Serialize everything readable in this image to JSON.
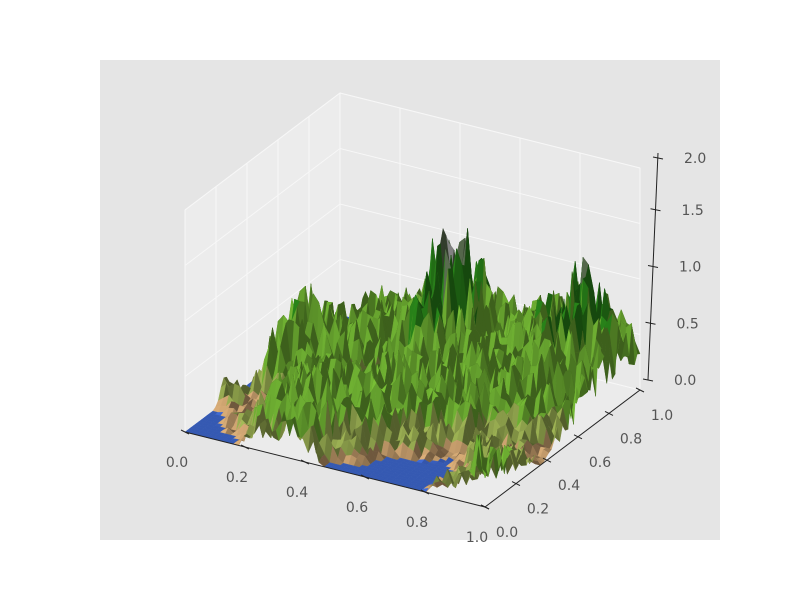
{
  "chart_data": {
    "type": "surface",
    "title": "",
    "xlabel": "",
    "ylabel": "",
    "zlabel": "",
    "xlim": [
      0,
      1
    ],
    "ylim": [
      0,
      1
    ],
    "zlim": [
      0,
      2
    ],
    "x_ticks": [
      "0.0",
      "0.2",
      "0.4",
      "0.6",
      "0.8",
      "1.0"
    ],
    "y_ticks": [
      "0.0",
      "0.2",
      "0.4",
      "0.6",
      "0.8",
      "1.0"
    ],
    "z_ticks": [
      "0.0",
      "0.5",
      "1.0",
      "1.5",
      "2.0"
    ],
    "grid": true,
    "colormap": "terrain",
    "colors": {
      "water": "#3c64c8",
      "sand": "#c9a06e",
      "low_green": "#7cb83a",
      "green": "#2f8a1e",
      "dark_green": "#1a5e10",
      "snow": "#f2f2f2",
      "background": "#e5e5e5"
    },
    "z_estimate_grid": {
      "x": [
        0,
        0.125,
        0.25,
        0.375,
        0.5,
        0.625,
        0.75,
        0.875,
        1
      ],
      "y": [
        0,
        0.125,
        0.25,
        0.375,
        0.5,
        0.625,
        0.75,
        0.875,
        1
      ],
      "z_rows_by_y": [
        [
          0,
          0,
          0.3,
          0.4,
          0,
          0,
          0,
          0.3,
          0.6
        ],
        [
          0,
          0.2,
          0.5,
          0.6,
          0.3,
          0,
          0,
          0.2,
          0.4
        ],
        [
          0.3,
          0.1,
          0.5,
          0.6,
          0.5,
          0.3,
          0.1,
          0.3,
          0.3
        ],
        [
          0,
          0.6,
          0.5,
          0.4,
          0.6,
          0.5,
          0.4,
          0.2,
          0.1
        ],
        [
          0,
          0.8,
          0.6,
          0.3,
          0.5,
          0.6,
          0.5,
          0.4,
          0.3
        ],
        [
          0,
          0.6,
          0.5,
          0.6,
          0.9,
          0.6,
          0.5,
          0.6,
          0.5
        ],
        [
          0,
          0.3,
          0.6,
          0.6,
          1.3,
          0.5,
          0.6,
          0.8,
          0.6
        ],
        [
          0,
          0.2,
          0.5,
          0.6,
          0.9,
          0.5,
          0.7,
          1.0,
          0.7
        ],
        [
          0,
          0.1,
          0.3,
          0.5,
          0.6,
          0.5,
          0.6,
          0.7,
          0.5
        ]
      ]
    }
  }
}
